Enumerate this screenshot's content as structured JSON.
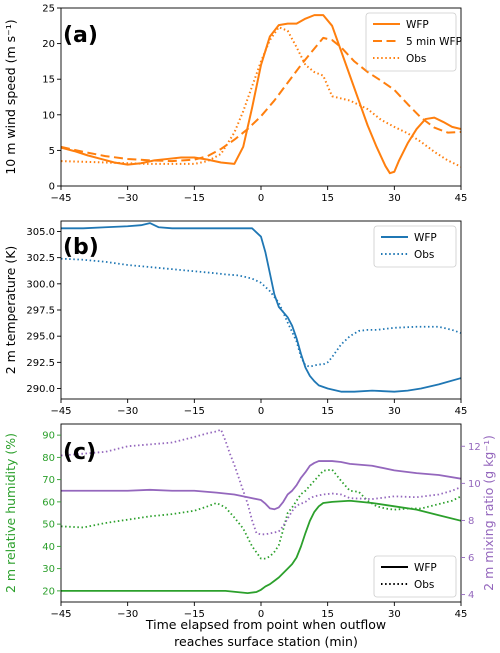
{
  "figure": {
    "xlabel_line1": "Time elapsed from point when outflow",
    "xlabel_line2": "reaches surface station (min)"
  },
  "colors": {
    "orange": "#ff7f0e",
    "blue": "#1f77b4",
    "green": "#2ca02c",
    "purple": "#9467bd"
  },
  "chart_data": [
    {
      "type": "line",
      "panel": "(a)",
      "ylabel": "10 m wind speed (m s⁻¹)",
      "xlim": [
        -45,
        45
      ],
      "ylim": [
        0,
        25
      ],
      "xticks": [
        -45,
        -30,
        -15,
        0,
        15,
        30,
        45
      ],
      "yticks": [
        0,
        5,
        10,
        15,
        20,
        25
      ],
      "legend_position": "top-right",
      "series": [
        {
          "name": "WFP",
          "color": "#ff7f0e",
          "dash": "solid",
          "x": [
            -45,
            -42,
            -39,
            -36,
            -33,
            -30,
            -27,
            -24,
            -21,
            -18,
            -15,
            -12,
            -9,
            -6,
            -4,
            -2,
            0,
            2,
            4,
            6,
            8,
            10,
            12,
            14,
            16,
            18,
            20,
            22,
            24,
            26,
            28,
            29,
            30,
            31,
            33,
            35,
            37,
            39,
            41,
            43,
            45
          ],
          "y": [
            5.4,
            4.9,
            4.3,
            3.8,
            3.3,
            3.0,
            3.2,
            3.6,
            3.8,
            4.0,
            4.0,
            3.7,
            3.3,
            3.1,
            5.5,
            11.0,
            17.0,
            21.0,
            22.6,
            22.8,
            22.8,
            23.5,
            24.0,
            24.0,
            22.5,
            19.0,
            15.5,
            12.0,
            8.5,
            5.5,
            2.8,
            1.8,
            2.0,
            3.5,
            6.0,
            8.0,
            9.4,
            9.6,
            9.0,
            8.3,
            8.0
          ]
        },
        {
          "name": "5 min WFP",
          "color": "#ff7f0e",
          "dash": "dashed",
          "x": [
            -45,
            -40,
            -35,
            -30,
            -25,
            -20,
            -15,
            -12,
            -9,
            -6,
            -3,
            0,
            3,
            6,
            9,
            12,
            14,
            16,
            18,
            21,
            24,
            27,
            30,
            33,
            36,
            39,
            42,
            45
          ],
          "y": [
            5.5,
            4.8,
            4.2,
            3.8,
            3.6,
            3.5,
            3.7,
            4.2,
            5.2,
            6.5,
            8.0,
            9.8,
            12.0,
            14.5,
            17.0,
            19.3,
            20.8,
            20.5,
            19.5,
            17.5,
            16.0,
            14.8,
            13.5,
            11.5,
            9.6,
            8.2,
            7.5,
            7.6
          ]
        },
        {
          "name": "Obs",
          "color": "#ff7f0e",
          "dash": "dotted",
          "x": [
            -45,
            -40,
            -35,
            -30,
            -25,
            -20,
            -15,
            -12,
            -9,
            -6,
            -4,
            -2,
            0,
            2,
            4,
            6,
            8,
            10,
            12,
            14,
            16,
            20,
            24,
            27,
            30,
            33,
            36,
            39,
            42,
            45
          ],
          "y": [
            3.5,
            3.4,
            3.3,
            3.2,
            3.1,
            3.1,
            3.1,
            3.5,
            4.5,
            7.5,
            10.5,
            14.0,
            17.5,
            20.5,
            22.3,
            21.8,
            19.5,
            17.0,
            16.0,
            15.5,
            12.6,
            12.0,
            10.8,
            9.3,
            8.3,
            7.4,
            6.2,
            4.8,
            3.6,
            2.7
          ]
        }
      ]
    },
    {
      "type": "line",
      "panel": "(b)",
      "ylabel": "2 m temperature (K)",
      "xlim": [
        -45,
        45
      ],
      "ylim": [
        289,
        306
      ],
      "xticks": [
        -45,
        -30,
        -15,
        0,
        15,
        30,
        45
      ],
      "yticks": [
        290.0,
        292.5,
        295.0,
        297.5,
        300.0,
        302.5,
        305.0
      ],
      "ytick_labels": [
        "290.0",
        "292.5",
        "295.0",
        "297.5",
        "300.0",
        "302.5",
        "305.0"
      ],
      "legend_position": "top-right",
      "series": [
        {
          "name": "WFP",
          "color": "#1f77b4",
          "dash": "solid",
          "x": [
            -45,
            -40,
            -35,
            -30,
            -27,
            -25,
            -23,
            -20,
            -15,
            -10,
            -5,
            -2,
            0,
            1,
            2,
            3,
            4,
            5,
            6,
            7,
            8,
            9,
            10,
            11,
            12,
            13,
            15,
            18,
            21,
            25,
            30,
            33,
            36,
            40,
            45
          ],
          "y": [
            305.3,
            305.3,
            305.4,
            305.5,
            305.6,
            305.8,
            305.4,
            305.3,
            305.3,
            305.3,
            305.3,
            305.3,
            304.5,
            303.0,
            301.0,
            299.0,
            297.8,
            297.3,
            296.8,
            296.0,
            294.8,
            293.3,
            292.0,
            291.2,
            290.7,
            290.3,
            290.0,
            289.7,
            289.7,
            289.8,
            289.7,
            289.8,
            290.0,
            290.4,
            291.0
          ]
        },
        {
          "name": "Obs",
          "color": "#1f77b4",
          "dash": "dotted",
          "x": [
            -45,
            -40,
            -35,
            -30,
            -25,
            -20,
            -15,
            -10,
            -8,
            -5,
            -2,
            0,
            2,
            4,
            6,
            8,
            9,
            10,
            11,
            12,
            13,
            14,
            15,
            16,
            18,
            20,
            22,
            24,
            26,
            30,
            35,
            40,
            43,
            45
          ],
          "y": [
            302.4,
            302.3,
            302.1,
            301.8,
            301.6,
            301.4,
            301.2,
            301.0,
            300.9,
            300.8,
            300.5,
            300.1,
            299.3,
            298.2,
            296.3,
            294.5,
            293.0,
            292.2,
            292.1,
            292.2,
            292.3,
            292.3,
            292.5,
            293.0,
            294.2,
            295.0,
            295.5,
            295.6,
            295.6,
            295.8,
            295.9,
            295.9,
            295.6,
            295.3
          ]
        }
      ]
    },
    {
      "type": "line",
      "panel": "(c)",
      "ylabel": "2 m relative humidity (%)",
      "ylabel_right": "2 m mixing ratio (g kg⁻¹)",
      "xlim": [
        -45,
        45
      ],
      "ylim": [
        15,
        95
      ],
      "ylim_right": [
        3.6,
        13.2
      ],
      "xticks": [
        -45,
        -30,
        -15,
        0,
        15,
        30,
        45
      ],
      "yticks": [
        20,
        30,
        40,
        50,
        60,
        70,
        80,
        90
      ],
      "yticks_right": [
        4,
        6,
        8,
        10,
        12
      ],
      "legend_position": "bottom-right",
      "legend": [
        {
          "name": "WFP",
          "dash": "solid"
        },
        {
          "name": "Obs",
          "dash": "dotted"
        }
      ],
      "series": [
        {
          "name": "RH WFP",
          "color": "#2ca02c",
          "dash": "solid",
          "axis": "left",
          "x": [
            -45,
            -35,
            -25,
            -15,
            -8,
            -3,
            -1,
            0,
            1,
            2,
            3,
            4,
            6,
            7,
            8,
            9,
            10,
            11,
            12,
            13,
            14,
            16,
            20,
            25,
            30,
            35,
            40,
            45
          ],
          "y": [
            20,
            20,
            20,
            20,
            20,
            19,
            19.5,
            20.5,
            22,
            23,
            24.5,
            26,
            30,
            32,
            35,
            40,
            46,
            51.5,
            55.5,
            58,
            59.5,
            60,
            60.5,
            59.5,
            58,
            56.5,
            54,
            51.5
          ]
        },
        {
          "name": "RH Obs",
          "color": "#2ca02c",
          "dash": "dotted",
          "axis": "left",
          "x": [
            -45,
            -40,
            -35,
            -30,
            -25,
            -20,
            -15,
            -12,
            -10,
            -8,
            -6,
            -4,
            -2,
            0,
            1,
            2,
            3,
            4,
            5,
            6,
            7,
            8,
            9,
            10,
            12,
            14,
            16,
            18,
            20,
            22,
            24,
            26,
            28,
            30,
            33,
            36,
            40,
            43,
            45
          ],
          "y": [
            49,
            48.5,
            50.5,
            52,
            53.5,
            54.5,
            56,
            58,
            59.5,
            57.5,
            53,
            48,
            40,
            34.5,
            34.5,
            35.5,
            37.5,
            40.5,
            47.5,
            55,
            57.5,
            60.5,
            63.5,
            65,
            69.5,
            74,
            74.5,
            69.5,
            65,
            64.5,
            60.5,
            58,
            57,
            56.5,
            57,
            57,
            59,
            60.5,
            62.5
          ]
        },
        {
          "name": "q WFP",
          "color": "#9467bd",
          "dash": "solid",
          "axis": "right",
          "x": [
            -45,
            -40,
            -35,
            -30,
            -25,
            -20,
            -15,
            -10,
            -6,
            -3,
            0,
            1,
            2,
            3,
            4,
            5,
            6,
            7,
            8,
            9,
            10,
            11,
            12,
            13,
            14,
            16,
            18,
            20,
            25,
            30,
            35,
            40,
            45
          ],
          "y": [
            9.6,
            9.6,
            9.6,
            9.6,
            9.65,
            9.6,
            9.6,
            9.5,
            9.4,
            9.25,
            9.1,
            8.9,
            8.65,
            8.6,
            8.7,
            9.0,
            9.4,
            9.6,
            9.9,
            10.3,
            10.6,
            10.95,
            11.1,
            11.2,
            11.2,
            11.2,
            11.15,
            11.05,
            10.95,
            10.7,
            10.55,
            10.45,
            10.25
          ]
        },
        {
          "name": "q Obs",
          "color": "#9467bd",
          "dash": "dotted",
          "axis": "right",
          "x": [
            -45,
            -40,
            -35,
            -30,
            -25,
            -20,
            -15,
            -12,
            -10,
            -9,
            -8,
            -7,
            -6,
            -5,
            -4,
            -3,
            -2,
            -1,
            0,
            1,
            2,
            3,
            4,
            5,
            6,
            7,
            8,
            9,
            10,
            11,
            12,
            14,
            16,
            18,
            20,
            25,
            30,
            35,
            40,
            43,
            45
          ],
          "y": [
            11.5,
            11.6,
            11.7,
            12.0,
            12.1,
            12.2,
            12.5,
            12.7,
            12.8,
            12.9,
            12.3,
            11.6,
            11.0,
            10.3,
            9.6,
            8.9,
            8.0,
            7.3,
            7.25,
            7.25,
            7.3,
            7.35,
            7.4,
            7.7,
            8.1,
            8.5,
            8.8,
            8.9,
            9.0,
            9.2,
            9.3,
            9.4,
            9.45,
            9.4,
            9.2,
            9.15,
            9.3,
            9.25,
            9.4,
            9.6,
            9.8
          ]
        }
      ]
    }
  ]
}
